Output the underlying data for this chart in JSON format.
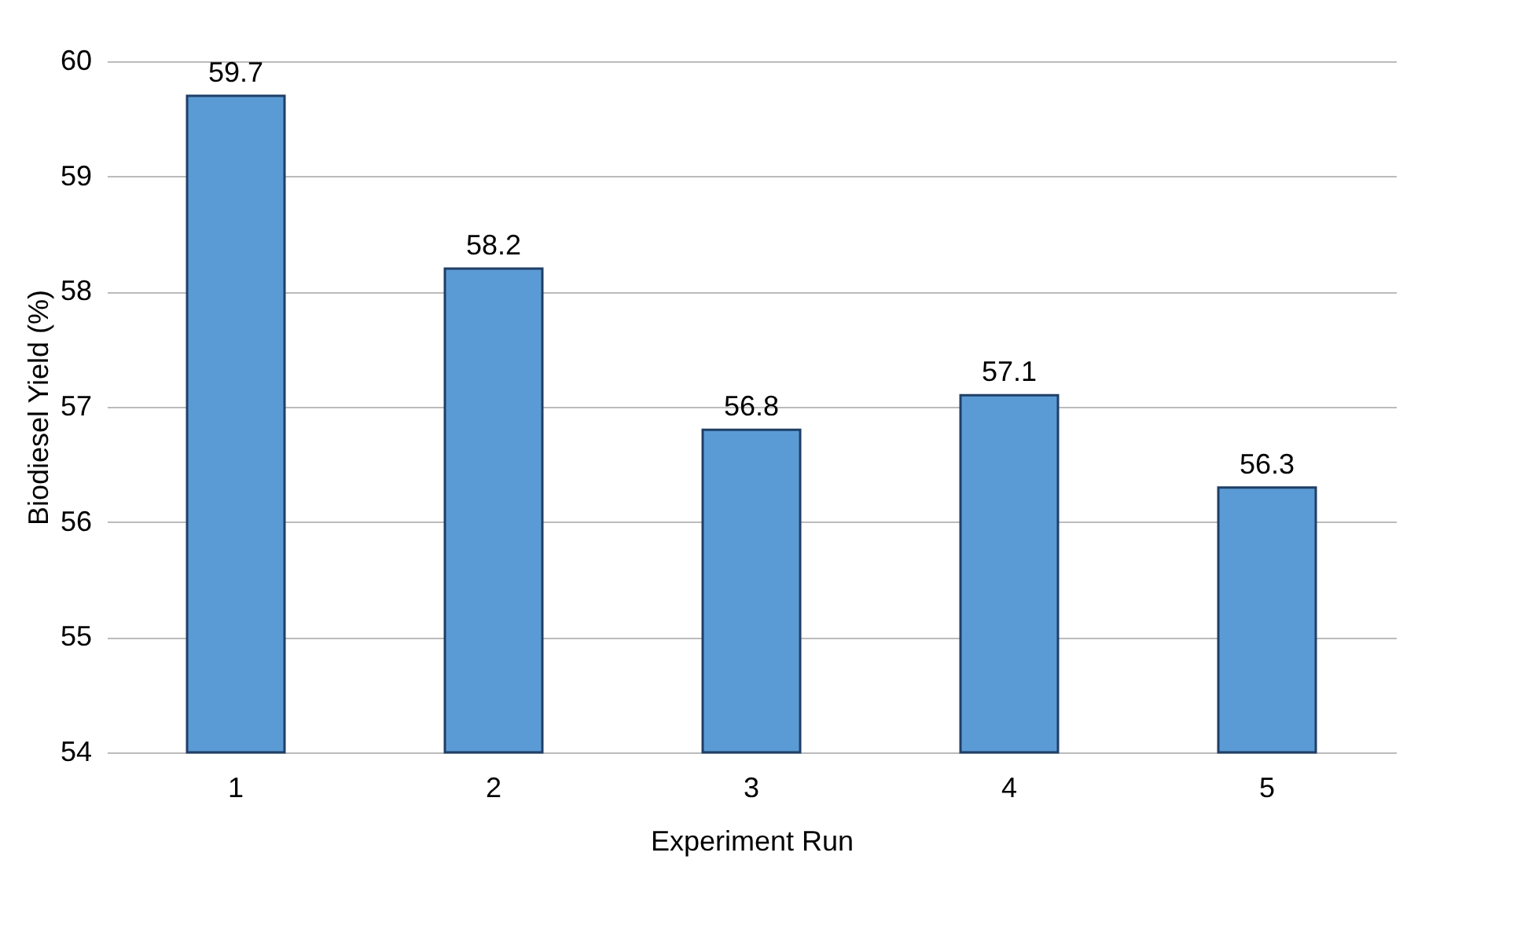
{
  "chart_data": {
    "type": "bar",
    "xlabel": "Experiment Run",
    "ylabel": "Biodiesel Yield (%)",
    "categories": [
      "1",
      "2",
      "3",
      "4",
      "5"
    ],
    "values": [
      59.7,
      58.2,
      56.8,
      57.1,
      56.3
    ],
    "color": "#5b9bd5",
    "ylim": [
      54,
      60
    ],
    "yticks": [
      54,
      55,
      56,
      57,
      58,
      59,
      60
    ],
    "grid": "y",
    "data_labels": true
  }
}
